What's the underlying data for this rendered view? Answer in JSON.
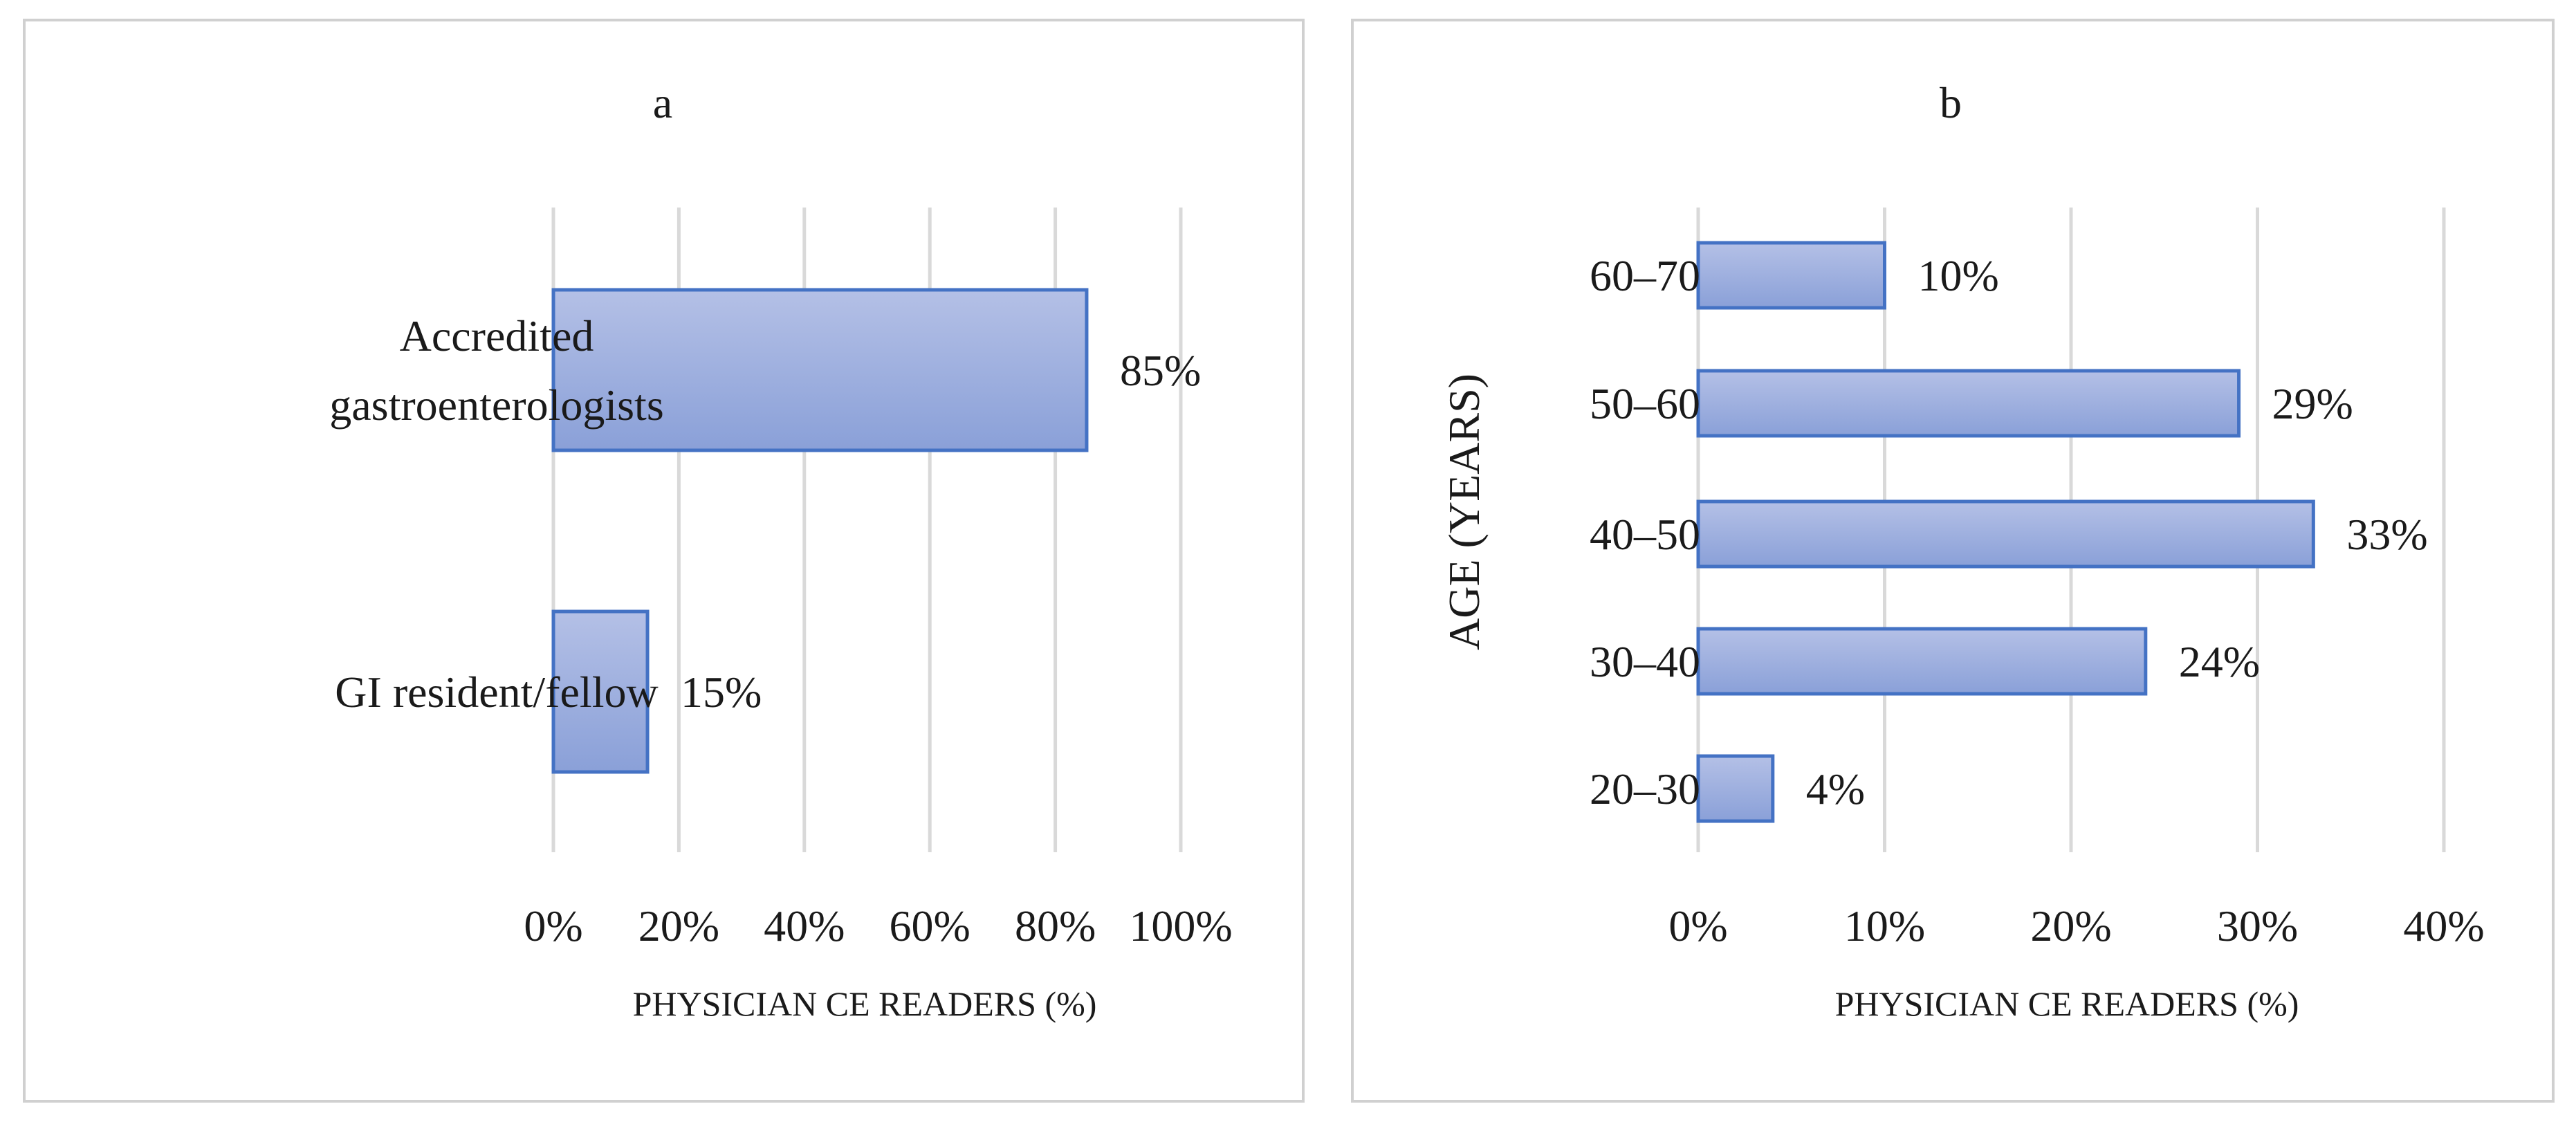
{
  "colors": {
    "bar_fill_top": "#b4c0e6",
    "bar_fill_bottom": "#8aa0d8",
    "bar_stroke": "#4472c4",
    "grid": "#d9d9d9",
    "panel_border": "#d0d0d0",
    "text": "#1a1a1a"
  },
  "chart_data": [
    {
      "type": "bar",
      "orientation": "horizontal",
      "title": "a",
      "xlabel": "PHYSICIAN CE READERS (%)",
      "ylabel": "",
      "categories": [
        "Accredited gastroenterologists",
        "GI resident/fellow"
      ],
      "category_lines": [
        [
          "Accredited",
          "gastroenterologists"
        ],
        [
          "GI resident/fellow"
        ]
      ],
      "values": [
        85,
        15
      ],
      "data_labels": [
        "85%",
        "15%"
      ],
      "xlim": [
        0,
        100
      ],
      "xticks": [
        0,
        20,
        40,
        60,
        80,
        100
      ],
      "xtick_labels": [
        "0%",
        "20%",
        "40%",
        "60%",
        "80%",
        "100%"
      ],
      "grid": true,
      "legend": "none"
    },
    {
      "type": "bar",
      "orientation": "horizontal",
      "title": "b",
      "xlabel": "PHYSICIAN CE READERS (%)",
      "ylabel": "AGE (YEARS)",
      "categories": [
        "60–70",
        "50–60",
        "40–50",
        "30–40",
        "20–30"
      ],
      "category_lines": [
        [
          "60–70"
        ],
        [
          "50–60"
        ],
        [
          "40–50"
        ],
        [
          "30–40"
        ],
        [
          "20–30"
        ]
      ],
      "values": [
        10,
        29,
        33,
        24,
        4
      ],
      "data_labels": [
        "10%",
        "29%",
        "33%",
        "24%",
        "4%"
      ],
      "xlim": [
        0,
        40
      ],
      "xticks": [
        0,
        10,
        20,
        30,
        40
      ],
      "xtick_labels": [
        "0%",
        "10%",
        "20%",
        "30%",
        "40%"
      ],
      "grid": true,
      "legend": "none"
    }
  ]
}
